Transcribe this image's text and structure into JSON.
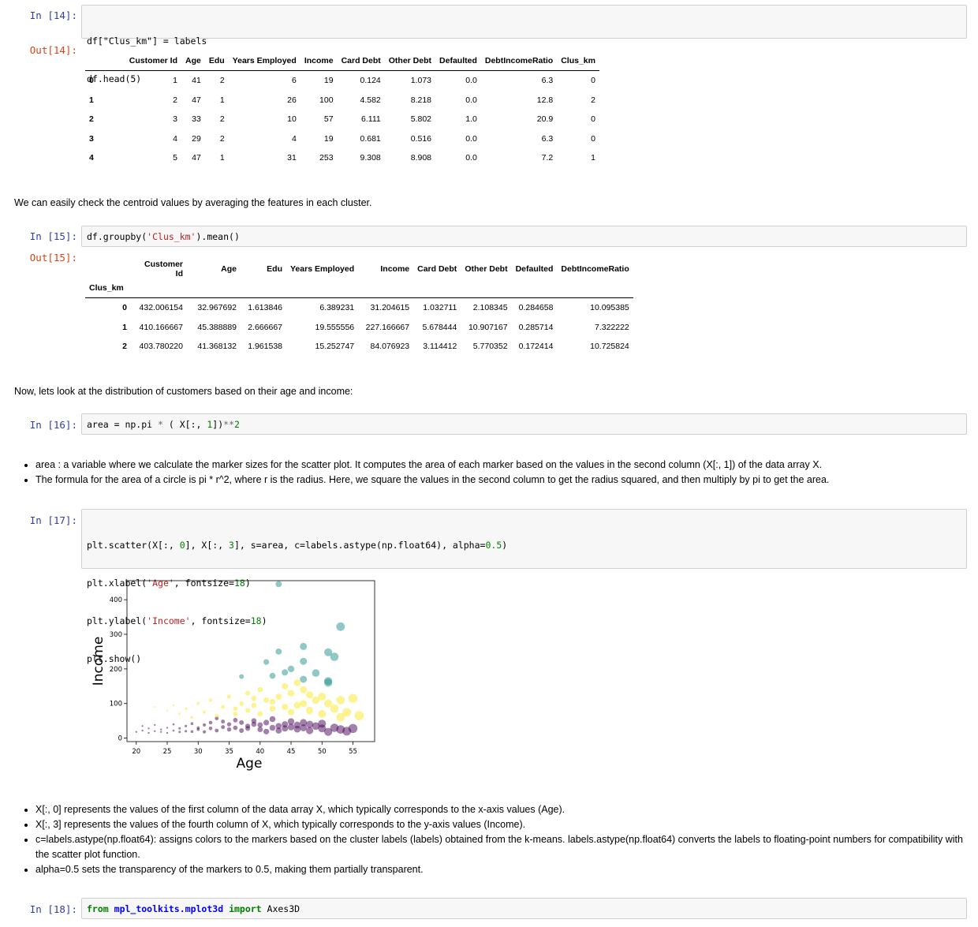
{
  "cells": {
    "c14": {
      "prompt_in": "In [14]:",
      "code": [
        "df[\"Clus_km\"] = labels",
        "df.head(5)"
      ],
      "prompt_out": "Out[14]:",
      "table": {
        "columns": [
          "Customer Id",
          "Age",
          "Edu",
          "Years Employed",
          "Income",
          "Card Debt",
          "Other Debt",
          "Defaulted",
          "DebtIncomeRatio",
          "Clus_km"
        ],
        "rows": [
          {
            "index": "0",
            "cells": [
              "1",
              "41",
              "2",
              "6",
              "19",
              "0.124",
              "1.073",
              "0.0",
              "6.3",
              "0"
            ]
          },
          {
            "index": "1",
            "cells": [
              "2",
              "47",
              "1",
              "26",
              "100",
              "4.582",
              "8.218",
              "0.0",
              "12.8",
              "2"
            ]
          },
          {
            "index": "2",
            "cells": [
              "3",
              "33",
              "2",
              "10",
              "57",
              "6.111",
              "5.802",
              "1.0",
              "20.9",
              "0"
            ]
          },
          {
            "index": "3",
            "cells": [
              "4",
              "29",
              "2",
              "4",
              "19",
              "0.681",
              "0.516",
              "0.0",
              "6.3",
              "0"
            ]
          },
          {
            "index": "4",
            "cells": [
              "5",
              "47",
              "1",
              "31",
              "253",
              "9.308",
              "8.908",
              "0.0",
              "7.2",
              "1"
            ]
          }
        ]
      }
    },
    "md1": "We can easily check the centroid values by averaging the features in each cluster.",
    "c15": {
      "prompt_in": "In [15]:",
      "code_parts": [
        "df.groupby(",
        "'Clus_km'",
        ").mean()"
      ],
      "prompt_out": "Out[15]:",
      "table": {
        "columns": [
          "Customer Id",
          "Age",
          "Edu",
          "Years Employed",
          "Income",
          "Card Debt",
          "Other Debt",
          "Defaulted",
          "DebtIncomeRatio"
        ],
        "index_name": "Clus_km",
        "rows": [
          {
            "index": "0",
            "cells": [
              "432.006154",
              "32.967692",
              "1.613846",
              "6.389231",
              "31.204615",
              "1.032711",
              "2.108345",
              "0.284658",
              "10.095385"
            ]
          },
          {
            "index": "1",
            "cells": [
              "410.166667",
              "45.388889",
              "2.666667",
              "19.555556",
              "227.166667",
              "5.678444",
              "10.907167",
              "0.285714",
              "7.322222"
            ]
          },
          {
            "index": "2",
            "cells": [
              "403.780220",
              "41.368132",
              "1.961538",
              "15.252747",
              "84.076923",
              "3.114412",
              "5.770352",
              "0.172414",
              "10.725824"
            ]
          }
        ]
      }
    },
    "md2": "Now, lets look at the distribution of customers based on their age and income:",
    "c16": {
      "prompt_in": "In [16]:",
      "code_parts": [
        "area = np.pi ",
        "*",
        " ( X[:, ",
        "1",
        "])",
        "**",
        "2"
      ]
    },
    "bullets1": [
      "area : a variable where we calculate the marker sizes for the scatter plot. It computes the area of each marker based on the values in the second column (X[:, 1]) of the data array X.",
      "The formula for the area of a circle is pi * r^2, where r is the radius. Here, we square the values in the second column to get the radius squared, and then multiply by pi to get the area."
    ],
    "c17": {
      "prompt_in": "In [17]:",
      "lines": [
        [
          "plt.scatter(X[:, ",
          "0",
          "], X[:, ",
          "3",
          "], s=area, c=labels.astype(np.float64), alpha=",
          "0.5",
          ")"
        ],
        [
          "plt.xlabel(",
          "'Age'",
          ", fontsize=",
          "18",
          ")"
        ],
        [
          "plt.ylabel(",
          "'Income'",
          ", fontsize=",
          "18",
          ")"
        ],
        [
          "plt.show()"
        ]
      ]
    },
    "chart_data": {
      "type": "scatter",
      "xlabel": "Age",
      "ylabel": "Income",
      "xlim": [
        18.5,
        58.5
      ],
      "ylim": [
        -10,
        455
      ],
      "xticks": [
        "20",
        "25",
        "30",
        "35",
        "40",
        "45",
        "50",
        "55"
      ],
      "yticks": [
        "0",
        "100",
        "200",
        "300",
        "400"
      ],
      "alpha": 0.5,
      "colors": {
        "cluster_0": "#440154",
        "cluster_1": "#21918c",
        "cluster_2": "#fde725"
      },
      "series": [
        {
          "cluster": 0,
          "points": [
            [
              20,
              18
            ],
            [
              21,
              22
            ],
            [
              21,
              35
            ],
            [
              22,
              15
            ],
            [
              22,
              28
            ],
            [
              23,
              20
            ],
            [
              23,
              38
            ],
            [
              24,
              25
            ],
            [
              24,
              18
            ],
            [
              25,
              30
            ],
            [
              25,
              15
            ],
            [
              26,
              22
            ],
            [
              26,
              40
            ],
            [
              27,
              28
            ],
            [
              27,
              18
            ],
            [
              28,
              35
            ],
            [
              28,
              20
            ],
            [
              29,
              19
            ],
            [
              29,
              42
            ],
            [
              30,
              25
            ],
            [
              30,
              30
            ],
            [
              31,
              18
            ],
            [
              31,
              38
            ],
            [
              32,
              28
            ],
            [
              32,
              45
            ],
            [
              33,
              57
            ],
            [
              33,
              22
            ],
            [
              34,
              32
            ],
            [
              34,
              48
            ],
            [
              35,
              25
            ],
            [
              35,
              40
            ],
            [
              36,
              30
            ],
            [
              36,
              52
            ],
            [
              37,
              22
            ],
            [
              37,
              45
            ],
            [
              38,
              35
            ],
            [
              38,
              28
            ],
            [
              39,
              40
            ],
            [
              39,
              50
            ],
            [
              40,
              25
            ],
            [
              40,
              38
            ],
            [
              41,
              19
            ],
            [
              41,
              45
            ],
            [
              42,
              30
            ],
            [
              42,
              55
            ],
            [
              43,
              35
            ],
            [
              43,
              22
            ],
            [
              44,
              40
            ],
            [
              44,
              28
            ],
            [
              45,
              32
            ],
            [
              45,
              48
            ],
            [
              46,
              26
            ],
            [
              46,
              38
            ],
            [
              47,
              30
            ],
            [
              47,
              45
            ],
            [
              48,
              22
            ],
            [
              48,
              40
            ],
            [
              49,
              35
            ],
            [
              50,
              28
            ],
            [
              50,
              42
            ],
            [
              51,
              18
            ],
            [
              52,
              30
            ],
            [
              53,
              25
            ],
            [
              54,
              20
            ],
            [
              55,
              28
            ]
          ]
        },
        {
          "cluster": 1,
          "points": [
            [
              43,
              445
            ],
            [
              53,
              322
            ],
            [
              47,
              265
            ],
            [
              52,
              235
            ],
            [
              44,
              190
            ],
            [
              37,
              178
            ],
            [
              47,
              222
            ],
            [
              51,
              248
            ],
            [
              41,
              220
            ],
            [
              43,
              250
            ],
            [
              49,
              188
            ],
            [
              51,
              165
            ],
            [
              42,
              180
            ],
            [
              45,
              200
            ],
            [
              47,
              170
            ],
            [
              51,
              160
            ]
          ]
        },
        {
          "cluster": 2,
          "points": [
            [
              23,
              90
            ],
            [
              25,
              80
            ],
            [
              26,
              95
            ],
            [
              27,
              70
            ],
            [
              28,
              85
            ],
            [
              29,
              60
            ],
            [
              30,
              100
            ],
            [
              31,
              75
            ],
            [
              32,
              110
            ],
            [
              33,
              65
            ],
            [
              34,
              90
            ],
            [
              35,
              120
            ],
            [
              36,
              70
            ],
            [
              37,
              100
            ],
            [
              38,
              130
            ],
            [
              38,
              80
            ],
            [
              39,
              95
            ],
            [
              40,
              140
            ],
            [
              40,
              70
            ],
            [
              41,
              110
            ],
            [
              42,
              85
            ],
            [
              43,
              120
            ],
            [
              44,
              90
            ],
            [
              45,
              75
            ],
            [
              45,
              130
            ],
            [
              46,
              95
            ],
            [
              47,
              100
            ],
            [
              47,
              140
            ],
            [
              48,
              80
            ],
            [
              49,
              110
            ],
            [
              50,
              70
            ],
            [
              51,
              100
            ],
            [
              52,
              85
            ],
            [
              53,
              60
            ],
            [
              53,
              110
            ],
            [
              54,
              75
            ],
            [
              55,
              115
            ],
            [
              56,
              65
            ],
            [
              46,
              160
            ],
            [
              48,
              125
            ],
            [
              50,
              120
            ],
            [
              42,
              105
            ],
            [
              44,
              150
            ],
            [
              36,
              85
            ],
            [
              39,
              115
            ]
          ]
        }
      ]
    },
    "bullets2": [
      "X[:, 0] represents the values of the first column of the data array X, which typically corresponds to the x-axis values (Age).",
      "X[:, 3] represents the values of the fourth column of X, which typically corresponds to the y-axis values (Income).",
      "c=labels.astype(np.float64): assigns colors to the markers based on the cluster labels (labels) obtained from the k-means. labels.astype(np.float64) converts the labels to floating-point numbers for compatibility with the scatter plot function.",
      "alpha=0.5 sets the transparency of the markers to 0.5, making them partially transparent."
    ],
    "c18": {
      "prompt_in": "In [18]:",
      "code_parts": [
        "from",
        " ",
        "mpl_toolkits.mplot3d",
        " ",
        "import",
        " Axes3D"
      ]
    }
  }
}
